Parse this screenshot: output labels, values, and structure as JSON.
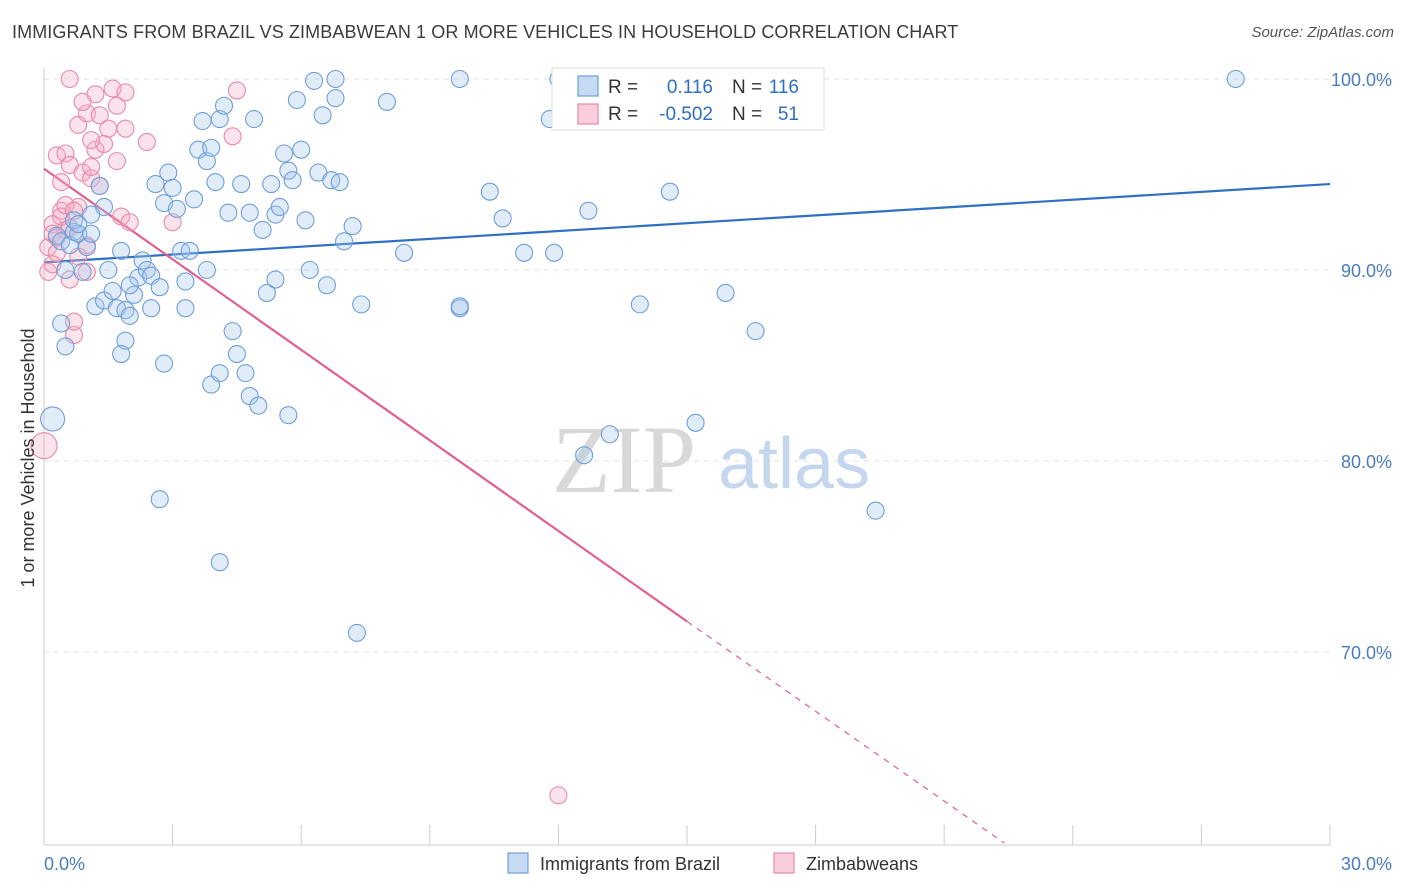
{
  "title": "IMMIGRANTS FROM BRAZIL VS ZIMBABWEAN 1 OR MORE VEHICLES IN HOUSEHOLD CORRELATION CHART",
  "source": "Source: ZipAtlas.com",
  "watermark": {
    "zip": "ZIP",
    "atlas": "atlas"
  },
  "colors": {
    "blue": "#6f9fd8",
    "blue_line": "#2f6fc4",
    "pink": "#e88aa8",
    "pink_line": "#e06090",
    "axis_label": "#4a7cc0"
  },
  "chart_data": {
    "type": "scatter",
    "xlabel": "",
    "ylabel": "1 or more Vehicles in Household",
    "xlim": [
      0,
      30
    ],
    "ylim": [
      60,
      102
    ],
    "x_tick_labels": [
      "0.0%",
      "30.0%"
    ],
    "y_ticks": [
      70,
      80,
      90,
      100
    ],
    "y_tick_labels": [
      "70.0%",
      "80.0%",
      "90.0%",
      "100.0%"
    ],
    "legend": [
      {
        "series": "Immigrants from Brazil",
        "r_label": "R =",
        "r": "0.116",
        "n_label": "N =",
        "n": "116"
      },
      {
        "series": "Zimbabweans",
        "r_label": "R =",
        "r": "-0.502",
        "n_label": "N =",
        "n": "51"
      }
    ],
    "series": [
      {
        "name": "Immigrants from Brazil",
        "trend": {
          "x0": 0,
          "y0": 90.4,
          "x1": 30,
          "y1": 94.5
        },
        "points": [
          [
            0.2,
            82.2
          ],
          [
            0.3,
            91.8
          ],
          [
            0.4,
            91.5
          ],
          [
            0.5,
            90.0
          ],
          [
            0.6,
            91.3
          ],
          [
            0.7,
            92.0
          ],
          [
            0.8,
            91.9
          ],
          [
            0.9,
            89.9
          ],
          [
            0.5,
            86.0
          ],
          [
            0.4,
            87.2
          ],
          [
            0.7,
            92.6
          ],
          [
            1.0,
            91.2
          ],
          [
            1.1,
            91.9
          ],
          [
            1.2,
            88.1
          ],
          [
            1.4,
            88.4
          ],
          [
            1.5,
            90.0
          ],
          [
            1.6,
            88.9
          ],
          [
            1.7,
            88.0
          ],
          [
            1.3,
            94.4
          ],
          [
            1.8,
            91.0
          ],
          [
            1.9,
            87.9
          ],
          [
            2.0,
            87.6
          ],
          [
            2.1,
            88.7
          ],
          [
            2.2,
            89.6
          ],
          [
            2.3,
            90.5
          ],
          [
            2.4,
            90.0
          ],
          [
            2.5,
            89.7
          ],
          [
            2.6,
            94.5
          ],
          [
            2.7,
            89.1
          ],
          [
            2.8,
            93.5
          ],
          [
            2.9,
            95.1
          ],
          [
            3.0,
            94.3
          ],
          [
            3.1,
            93.2
          ],
          [
            3.2,
            91.0
          ],
          [
            3.3,
            89.4
          ],
          [
            3.4,
            91.0
          ],
          [
            3.5,
            93.7
          ],
          [
            3.6,
            96.3
          ],
          [
            3.7,
            97.8
          ],
          [
            3.8,
            95.7
          ],
          [
            3.9,
            96.4
          ],
          [
            4.0,
            94.6
          ],
          [
            4.1,
            97.9
          ],
          [
            4.2,
            98.6
          ],
          [
            4.3,
            93.0
          ],
          [
            4.4,
            86.8
          ],
          [
            4.5,
            85.6
          ],
          [
            4.6,
            94.5
          ],
          [
            4.7,
            84.6
          ],
          [
            4.8,
            93.0
          ],
          [
            4.9,
            97.9
          ],
          [
            5.1,
            92.1
          ],
          [
            5.2,
            88.8
          ],
          [
            5.3,
            94.5
          ],
          [
            5.4,
            92.9
          ],
          [
            5.5,
            93.3
          ],
          [
            5.6,
            96.1
          ],
          [
            5.7,
            95.2
          ],
          [
            5.8,
            94.7
          ],
          [
            5.9,
            98.9
          ],
          [
            6.0,
            96.3
          ],
          [
            6.1,
            92.6
          ],
          [
            6.2,
            90.0
          ],
          [
            6.3,
            99.9
          ],
          [
            6.4,
            95.1
          ],
          [
            6.5,
            98.1
          ],
          [
            6.6,
            89.2
          ],
          [
            6.7,
            94.7
          ],
          [
            6.8,
            99.0
          ],
          [
            7.0,
            91.5
          ],
          [
            1.9,
            86.3
          ],
          [
            2.8,
            85.1
          ],
          [
            3.9,
            84.0
          ],
          [
            4.1,
            84.6
          ],
          [
            4.8,
            83.4
          ],
          [
            5.0,
            82.9
          ],
          [
            5.7,
            82.4
          ],
          [
            2.7,
            78.0
          ],
          [
            4.1,
            74.7
          ],
          [
            7.3,
            71.0
          ],
          [
            1.8,
            85.6
          ],
          [
            2.5,
            88.0
          ],
          [
            3.3,
            88.0
          ],
          [
            5.4,
            89.5
          ],
          [
            3.8,
            90.0
          ],
          [
            6.9,
            94.6
          ],
          [
            7.4,
            88.2
          ],
          [
            8.4,
            90.9
          ],
          [
            9.7,
            88.0
          ],
          [
            9.7,
            88.1
          ],
          [
            10.4,
            94.1
          ],
          [
            10.7,
            92.7
          ],
          [
            11.2,
            90.9
          ],
          [
            11.8,
            97.9
          ],
          [
            11.9,
            90.9
          ],
          [
            12.0,
            100.0
          ],
          [
            12.6,
            80.3
          ],
          [
            12.7,
            93.1
          ],
          [
            13.2,
            81.4
          ],
          [
            13.9,
            88.2
          ],
          [
            14.0,
            100.0
          ],
          [
            14.6,
            94.1
          ],
          [
            15.2,
            82.0
          ],
          [
            15.9,
            88.8
          ],
          [
            16.1,
            100.0
          ],
          [
            16.6,
            86.8
          ],
          [
            19.4,
            77.4
          ],
          [
            27.8,
            100.0
          ],
          [
            9.7,
            100.0
          ],
          [
            6.8,
            100.0
          ],
          [
            7.2,
            92.3
          ],
          [
            8.0,
            98.8
          ],
          [
            1.4,
            93.3
          ],
          [
            2.0,
            89.2
          ],
          [
            0.8,
            92.4
          ],
          [
            1.1,
            92.9
          ]
        ]
      },
      {
        "name": "Zimbabweans",
        "trend": {
          "x0": 0,
          "y0": 95.3,
          "x1": 15.0,
          "y1": 71.6,
          "dash_to_x": 22.4,
          "dash_to_y": 60.0
        },
        "points": [
          [
            0.0,
            80.8
          ],
          [
            0.1,
            91.2
          ],
          [
            0.2,
            92.4
          ],
          [
            0.2,
            91.9
          ],
          [
            0.3,
            90.9
          ],
          [
            0.3,
            96.0
          ],
          [
            0.4,
            93.1
          ],
          [
            0.4,
            94.6
          ],
          [
            0.5,
            92.1
          ],
          [
            0.5,
            96.1
          ],
          [
            0.6,
            89.5
          ],
          [
            0.6,
            95.5
          ],
          [
            0.7,
            86.6
          ],
          [
            0.7,
            87.3
          ],
          [
            0.8,
            97.6
          ],
          [
            0.8,
            93.3
          ],
          [
            0.9,
            95.1
          ],
          [
            1.0,
            98.2
          ],
          [
            1.0,
            91.3
          ],
          [
            1.1,
            94.8
          ],
          [
            1.1,
            95.4
          ],
          [
            1.2,
            96.3
          ],
          [
            1.2,
            99.2
          ],
          [
            1.3,
            98.1
          ],
          [
            1.4,
            96.6
          ],
          [
            1.5,
            97.4
          ],
          [
            1.6,
            99.5
          ],
          [
            1.7,
            95.7
          ],
          [
            1.8,
            92.8
          ],
          [
            1.9,
            99.3
          ],
          [
            2.0,
            92.5
          ],
          [
            0.6,
            100.0
          ],
          [
            0.9,
            98.8
          ],
          [
            1.7,
            98.6
          ],
          [
            1.9,
            97.4
          ],
          [
            3.0,
            92.5
          ],
          [
            4.5,
            99.4
          ],
          [
            4.4,
            97.0
          ],
          [
            0.1,
            89.9
          ],
          [
            0.2,
            90.3
          ],
          [
            0.3,
            91.7
          ],
          [
            0.4,
            92.8
          ],
          [
            0.5,
            93.4
          ],
          [
            0.7,
            93.1
          ],
          [
            0.8,
            90.7
          ],
          [
            1.0,
            89.9
          ],
          [
            1.1,
            96.8
          ],
          [
            1.3,
            94.4
          ],
          [
            2.4,
            96.7
          ],
          [
            0.6,
            92.2
          ],
          [
            12.0,
            62.5
          ]
        ]
      }
    ]
  }
}
